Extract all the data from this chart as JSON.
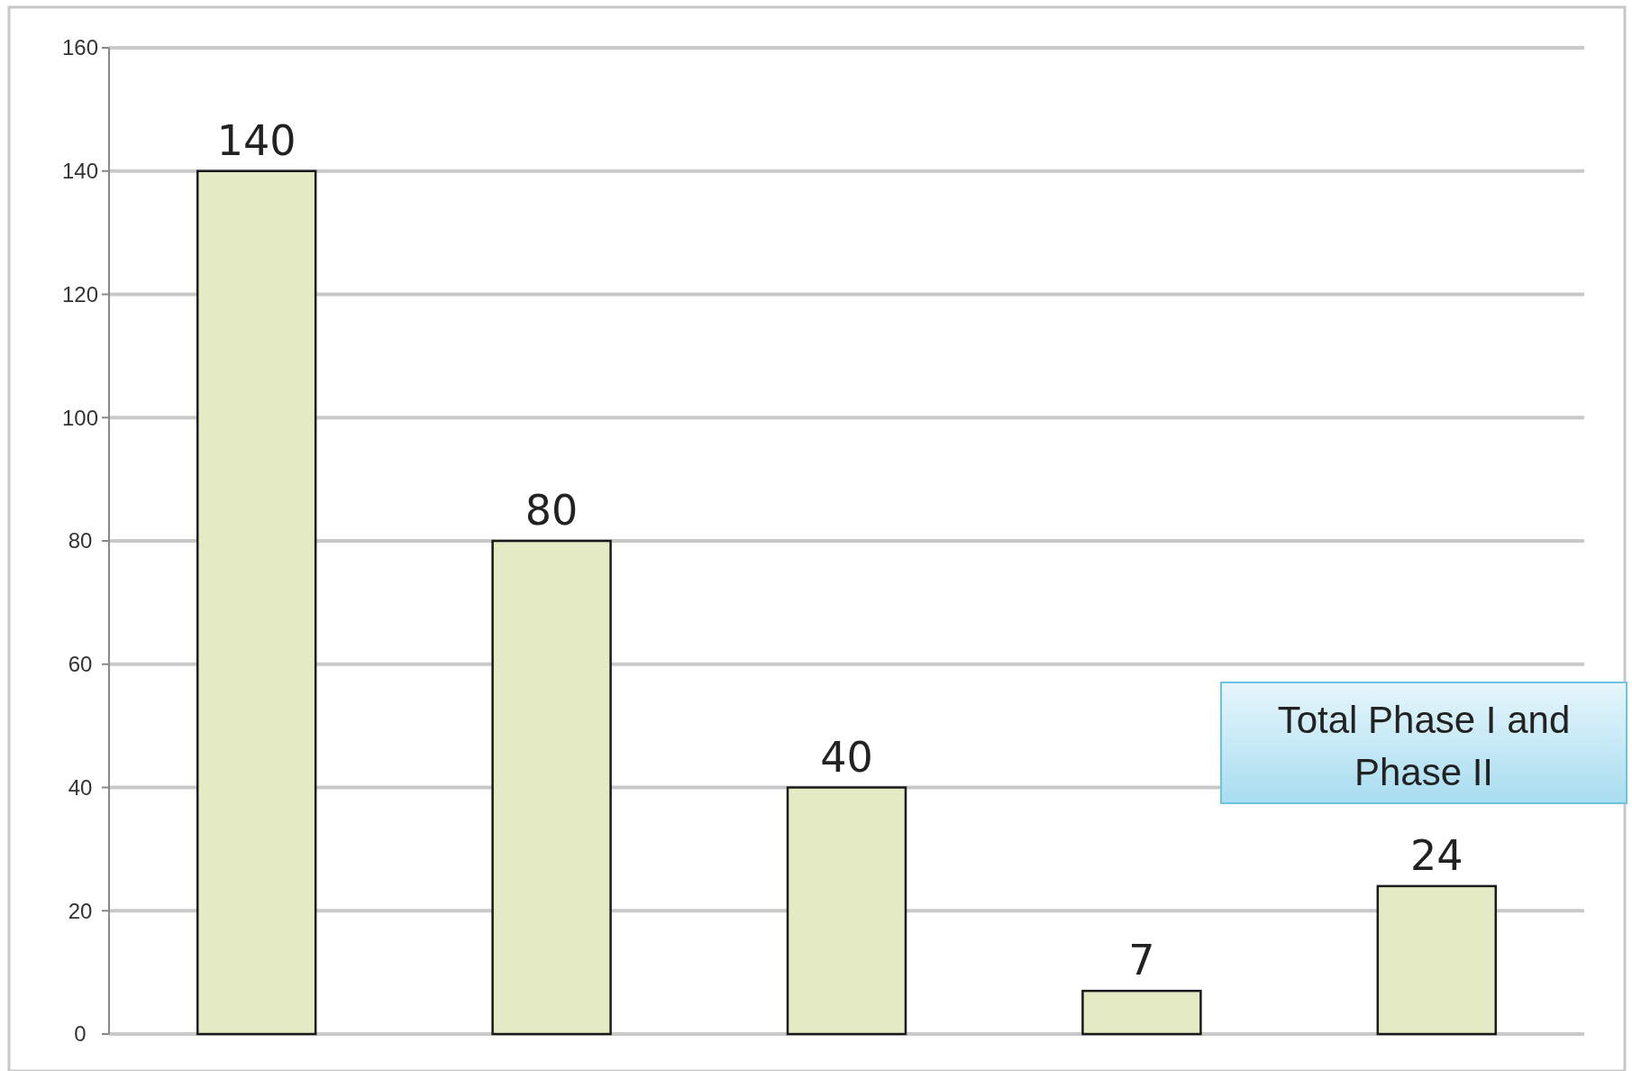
{
  "chart_data": {
    "type": "bar",
    "categories": [
      null,
      null,
      null,
      null,
      null
    ],
    "values": [
      140,
      80,
      40,
      7,
      24
    ],
    "color": "#e4ebc4",
    "ylim": [
      0,
      160
    ],
    "yticks": [
      0,
      20,
      40,
      60,
      80,
      100,
      120,
      140,
      160
    ],
    "grid": "y",
    "data_labels": true,
    "annotations": [
      "Total Phase I and Phase II"
    ]
  }
}
